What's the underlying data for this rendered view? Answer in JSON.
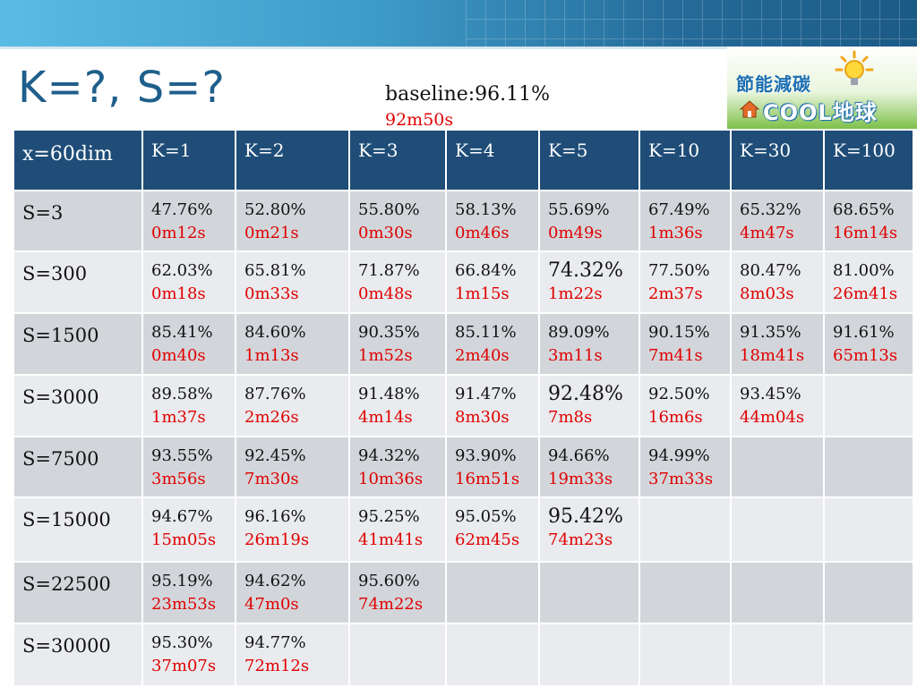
{
  "title": "K=?, S=?",
  "baseline": {
    "accuracy": "baseline:96.11%",
    "time": "92m50s"
  },
  "logo": {
    "line1": "節能減碳",
    "line2": "COOL地球"
  },
  "table": {
    "corner_label": "x=60dim",
    "columns": [
      "K=1",
      "K=2",
      "K=3",
      "K=4",
      "K=5",
      "K=10",
      "K=30",
      "K=100"
    ],
    "rows": [
      {
        "label": "S=3",
        "cells": [
          {
            "acc": "47.76%",
            "time": "0m12s"
          },
          {
            "acc": "52.80%",
            "time": "0m21s"
          },
          {
            "acc": "55.80%",
            "time": "0m30s"
          },
          {
            "acc": "58.13%",
            "time": "0m46s"
          },
          {
            "acc": "55.69%",
            "time": "0m49s"
          },
          {
            "acc": "67.49%",
            "time": "1m36s"
          },
          {
            "acc": "65.32%",
            "time": "4m47s"
          },
          {
            "acc": "68.65%",
            "time": "16m14s"
          }
        ]
      },
      {
        "label": "S=300",
        "cells": [
          {
            "acc": "62.03%",
            "time": "0m18s"
          },
          {
            "acc": "65.81%",
            "time": "0m33s"
          },
          {
            "acc": "71.87%",
            "time": "0m48s"
          },
          {
            "acc": "66.84%",
            "time": "1m15s"
          },
          {
            "acc": "74.32%",
            "time": "1m22s"
          },
          {
            "acc": "77.50%",
            "time": "2m37s"
          },
          {
            "acc": "80.47%",
            "time": "8m03s"
          },
          {
            "acc": "81.00%",
            "time": "26m41s"
          }
        ]
      },
      {
        "label": "S=1500",
        "cells": [
          {
            "acc": "85.41%",
            "time": "0m40s"
          },
          {
            "acc": "84.60%",
            "time": "1m13s"
          },
          {
            "acc": "90.35%",
            "time": "1m52s"
          },
          {
            "acc": "85.11%",
            "time": "2m40s"
          },
          {
            "acc": "89.09%",
            "time": "3m11s"
          },
          {
            "acc": "90.15%",
            "time": "7m41s"
          },
          {
            "acc": "91.35%",
            "time": "18m41s"
          },
          {
            "acc": "91.61%",
            "time": "65m13s"
          }
        ]
      },
      {
        "label": "S=3000",
        "cells": [
          {
            "acc": "89.58%",
            "time": "1m37s"
          },
          {
            "acc": "87.76%",
            "time": "2m26s"
          },
          {
            "acc": "91.48%",
            "time": "4m14s"
          },
          {
            "acc": "91.47%",
            "time": "8m30s"
          },
          {
            "acc": "92.48%",
            "time": "7m8s"
          },
          {
            "acc": "92.50%",
            "time": "16m6s"
          },
          {
            "acc": "93.45%",
            "time": "44m04s"
          },
          {
            "acc": "",
            "time": ""
          }
        ]
      },
      {
        "label": "S=7500",
        "cells": [
          {
            "acc": "93.55%",
            "time": "3m56s"
          },
          {
            "acc": "92.45%",
            "time": "7m30s"
          },
          {
            "acc": "94.32%",
            "time": "10m36s"
          },
          {
            "acc": "93.90%",
            "time": "16m51s"
          },
          {
            "acc": "94.66%",
            "time": "19m33s"
          },
          {
            "acc": "94.99%",
            "time": "37m33s"
          },
          {
            "acc": "",
            "time": ""
          },
          {
            "acc": "",
            "time": ""
          }
        ]
      },
      {
        "label": "S=15000",
        "cells": [
          {
            "acc": "94.67%",
            "time": "15m05s"
          },
          {
            "acc": "96.16%",
            "time": "26m19s"
          },
          {
            "acc": "95.25%",
            "time": "41m41s"
          },
          {
            "acc": "95.05%",
            "time": "62m45s"
          },
          {
            "acc": "95.42%",
            "time": "74m23s"
          },
          {
            "acc": "",
            "time": ""
          },
          {
            "acc": "",
            "time": ""
          },
          {
            "acc": "",
            "time": ""
          }
        ]
      },
      {
        "label": "S=22500",
        "cells": [
          {
            "acc": "95.19%",
            "time": "23m53s"
          },
          {
            "acc": "94.62%",
            "time": "47m0s"
          },
          {
            "acc": "95.60%",
            "time": "74m22s"
          },
          {
            "acc": "",
            "time": ""
          },
          {
            "acc": "",
            "time": ""
          },
          {
            "acc": "",
            "time": ""
          },
          {
            "acc": "",
            "time": ""
          },
          {
            "acc": "",
            "time": ""
          }
        ]
      },
      {
        "label": "S=30000",
        "cells": [
          {
            "acc": "95.30%",
            "time": "37m07s"
          },
          {
            "acc": "94.77%",
            "time": "72m12s"
          },
          {
            "acc": "",
            "time": ""
          },
          {
            "acc": "",
            "time": ""
          },
          {
            "acc": "",
            "time": ""
          },
          {
            "acc": "",
            "time": ""
          },
          {
            "acc": "",
            "time": ""
          },
          {
            "acc": "",
            "time": ""
          }
        ]
      }
    ]
  }
}
